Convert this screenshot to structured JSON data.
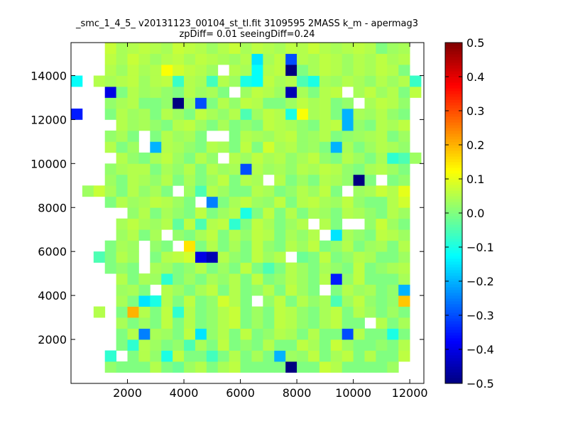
{
  "chart_data": {
    "type": "heatmap",
    "title_lines": [
      "_smc_1_4_5_ v20131123_00104_st_tl.fit 3109595 2MASS k_m - apermag3",
      "zpDiff= 0.01 seeingDiff=0.24"
    ],
    "colormap": "jet",
    "x_range": [
      0,
      12500
    ],
    "y_range": [
      0,
      15500
    ],
    "x_ticks": [
      2000,
      4000,
      6000,
      8000,
      10000,
      12000
    ],
    "x_tick_labels": [
      "2000",
      "4000",
      "6000",
      "8000",
      "10000",
      "12000"
    ],
    "y_ticks": [
      2000,
      4000,
      6000,
      8000,
      10000,
      12000,
      14000
    ],
    "y_tick_labels": [
      "2000",
      "4000",
      "6000",
      "8000",
      "10000",
      "12000",
      "14000"
    ],
    "colorbar": {
      "range": [
        -0.5,
        0.5
      ],
      "ticks": [
        -0.5,
        -0.4,
        -0.3,
        -0.2,
        -0.1,
        0.0,
        0.1,
        0.2,
        0.3,
        0.4,
        0.5
      ],
      "tick_labels": [
        "−0.5",
        "−0.4",
        "−0.3",
        "−0.2",
        "−0.1",
        "0.0",
        "0.1",
        "0.2",
        "0.3",
        "0.4",
        "0.5"
      ]
    },
    "grid": {
      "x_start": 0,
      "y_start": 0,
      "cell_width": 400,
      "cell_height": 500,
      "columns": 31,
      "rows": 31,
      "missing_value": "n",
      "rows_bottom_to_top": [
        "n n n n n n n n n n n n n n n n n n n n n n n n n n n n n n n",
        "n n n 0.02 0 0 0 0.05 0 -0.02 0.03 0.05 0 0.04 0.06 0 0 0 0 -0.5 0 0 0.07 0.05 0 0 0 0 0.03 n n",
        "n n n -0.08 n 0 0.05 0.02 -0.1 0.06 0 0 -0.06 0 0.05 0 0.04 0 -0.2 0.03 0.02 0.06 0 0.04 0.06 0 0.05 0 0 0.06 n",
        "n n n n 0 -0.08 0.05 0.03 0 0.02 -0.05 0.04 0 0.06 0 0.02 0 0.05 0 0 0.06 0.04 0 0.07 0.03 0 0 0.02 0 0.05 n",
        "n n n n 0 0.05 -0.25 0.04 0.03 0 0.06 -0.15 0.02 0.05 0 0.06 0 0.02 0.05 0.04 0 0.05 0 0 -0.3 0.05 0 0 -0.1 0 n",
        "n n n n 0.04 0 0.03 0 0.06 0 0.05 0 0.02 0.05 0.07 0 0.03 0 0.06 0.05 0.02 0 0.04 0.06 0 0 n 0.05 0 0.04 n",
        "n n 0.05 n 0 0.2 0.05 0 0.06 -0.08 0.05 0 0.02 0.05 0.07 0 0.03 0 0.06 0.05 0.02 0 0.04 0.06 0 0.05 0.03 0 0.03 0 n",
        "n n n n 0.04 0 -0.15 -0.1 0.05 0 0.06 0 0.02 0.08 0.05 0 n 0.02 0.06 0 0.05 0.02 0.04 -0.05 0.03 0.06 0.02 0 0.02 0.18 n",
        "n n n n 0.03 0.04 0 n 0.05 0.03 0 0.04 0.06 0 0.05 0 0.02 0.05 0 0.06 0.03 0 n 0 0.05 0.03 0.04 0 0.02 -0.2 n",
        "n n n n 0.05 0 0.04 0.03 -0.08 0 0.03 0 0.04 0.02 0.05 0 0.06 0 0.02 0.05 0.03 0 0.05 -0.35 0.02 0.06 0 0 0 0.04 n",
        "n n n 0 0.02 0 n 0.04 0.03 0 0.02 0.05 0 0.03 0 0.06 0 -0.05 0 0.05 0.03 0 0.04 0.02 0 0.06 0 0.02 0.04 0.05 n",
        "n n -0.05 0 0.05 0.03 n 0 0.05 0.06 0.08 -0.4 -0.45 0.05 0.02 0 0.06 0.03 0.05 n -0.02 0 0.06 0 0.02 0.05 0.04 0 0 0.03 n",
        "n n n 0 0.04 0.03 n 0.02 0 n 0.15 0 0.05 0 0.04 0 0.06 0.02 0 0.05 0.03 0.06 0 0.02 0.05 0 0.03 0.04 0 0.05 n",
        "n n n n 0.03 0.05 0 0.04 n 0.02 0 0.04 0.06 0 0.05 0.02 0.06 0.05 0 0.04 0.02 0.05 n -0.15 0.04 0.02 0 0.06 0.05 0.03 n",
        "n n n n 0.04 0.06 0.04 0.03 0.05 -0.03 0.06 -0.05 0.05 0.06 -0.08 0 0.06 0.04 0 0.03 0.05 n 0.05 0 n n 0.02 0.07 0.03 0 n",
        "n n n n n 0.02 0.05 0 0.04 0.02 0 0.06 0 0.03 0.05 -0.1 0 0.06 0 0.05 0 0.04 0.03 0 0.05 0.04 0.02 0 0.05 0.03 n",
        "n n n 0 0.05 0.03 0.04 0.06 0.05 0.03 0 n -0.25 0 0.04 0.06 0.03 0.02 0.06 0 0.05 0.06 0.04 0.03 0.06 0.02 0 0 0.05 0.08 n",
        "n 0.03 0.07 0.04 0 0.05 0.02 0.04 0 n 0.03 -0.05 0.05 0.03 0 0 0.05 0.04 0 0.02 0.05 0.03 0.06 0 n 0.03 0.04 0.07 0.05 0.1 n",
        "n n n 0.03 0 0.05 0.04 0.02 0.05 0 0.04 0 0.03 0.06 0 0.05 0.04 n 0.05 0 0.03 0 0.05 0.04 0.02 -0.5 0 n 0 0.02 n",
        "n n n 0.02 0.04 0.05 0.05 0 0.04 0.02 0.05 0 0.05 0.03 0.04 -0.3 0.05 0.03 0.04 0.02 0.05 0.04 0.06 0.05 0.02 0 0.04 0.05 0.03 0 n",
        "n n n n 0.05 0.02 0 0.04 0.06 0.03 0 0.05 0.02 n 0.05 0.03 0.06 0.04 0.05 0.02 0.04 0.06 0.02 0 0.05 0.03 0 0.04 -0.08 -0.05 0.03",
        "n n n 0.05 0 0.03 n -0.2 0.05 0.04 0.02 0 0.05 0.04 0 0.06 0 0.08 0.04 0.05 0.02 0.03 0 -0.2 0.04 0 0.03 0.05 0.04 0.02 n",
        "n n n 0.02 0.04 0 n 0 0.05 0.03 0.04 0 n n 0 0.05 0.04 0.03 0.05 0.06 0.02 0.03 0.05 0 0.02 0.03 0.04 0.05 0 0.03 n",
        "n n n n 0.05 0.03 0.04 0.02 0 0.05 0.06 0.03 0 0.04 0 0.02 0 0.06 0.05 0.04 0.02 0 0.05 0.06 -0.2 0.02 0 0.05 0.04 0.06 n",
        "-0.35 n n 0 0.05 0.03 0.04 0 0.05 0.03 0 0.06 0.04 0.02 0.05 -0.05 0.03 0.06 0.05 -0.1 0.12 0.04 0.05 0 -0.2 0.04 0.03 0.05 0.02 0 n",
        "n n n 0.02 0.04 0.05 0 0 0.02 -0.5 0.03 -0.3 0 0.05 0.02 0.06 0.05 0 0 0.03 0.06 0.04 0.05 0 0.02 n 0.04 0.06 0.05 0.02 n",
        "n n n -0.4 0 0.05 0.03 0.04 0.02 0 0.05 0.03 0.04 0 n 0.03 0.06 0.05 0.03 -0.45 0.04 0 0.05 0.06 n 0.04 0.06 0.03 0.05 0 0.06 n",
        "-0.12 n 0.05 0.04 0.05 0.06 0.03 0.05 0.06 -0.07 0.05 0.04 -0.06 0.05 0.03 -0.1 -0.12 0.06 0.04 0.05 -0.05 -0.1 0.04 0.03 0.05 0.04 0.02 0.05 0.03 0.05 -0.07",
        "n n n 0.05 0.03 0.06 0.04 0.05 0.12 0.08 0.06 0.05 0.03 n 0.05 0.04 -0.12 0.05 0.06 -0.5 0 0.04 0.06 0.05 0.03 0.05 0.04 0.06 0.05 0 n",
        "n n n 0.06 0.04 0.07 0.05 0.03 0.05 0.06 0.04 0.06 0.05 0.04 0.03 0.05 -0.15 0.04 0.06 -0.3 0.05 0.04 0.06 0.05 0.03 0.05 0.04 0.06 0.04 0.05 n",
        "n n n 0.07 0.04 0.05 0.06 0.05 0.04 0.07 0.06 0.05 0.03 0.05 0.07 0.04 0.06 0.05 0.04 0.06 0.05 0.07 0.05 0.04 0.05 0.06 0.05 0 0.03 0.04 n"
      ]
    }
  }
}
